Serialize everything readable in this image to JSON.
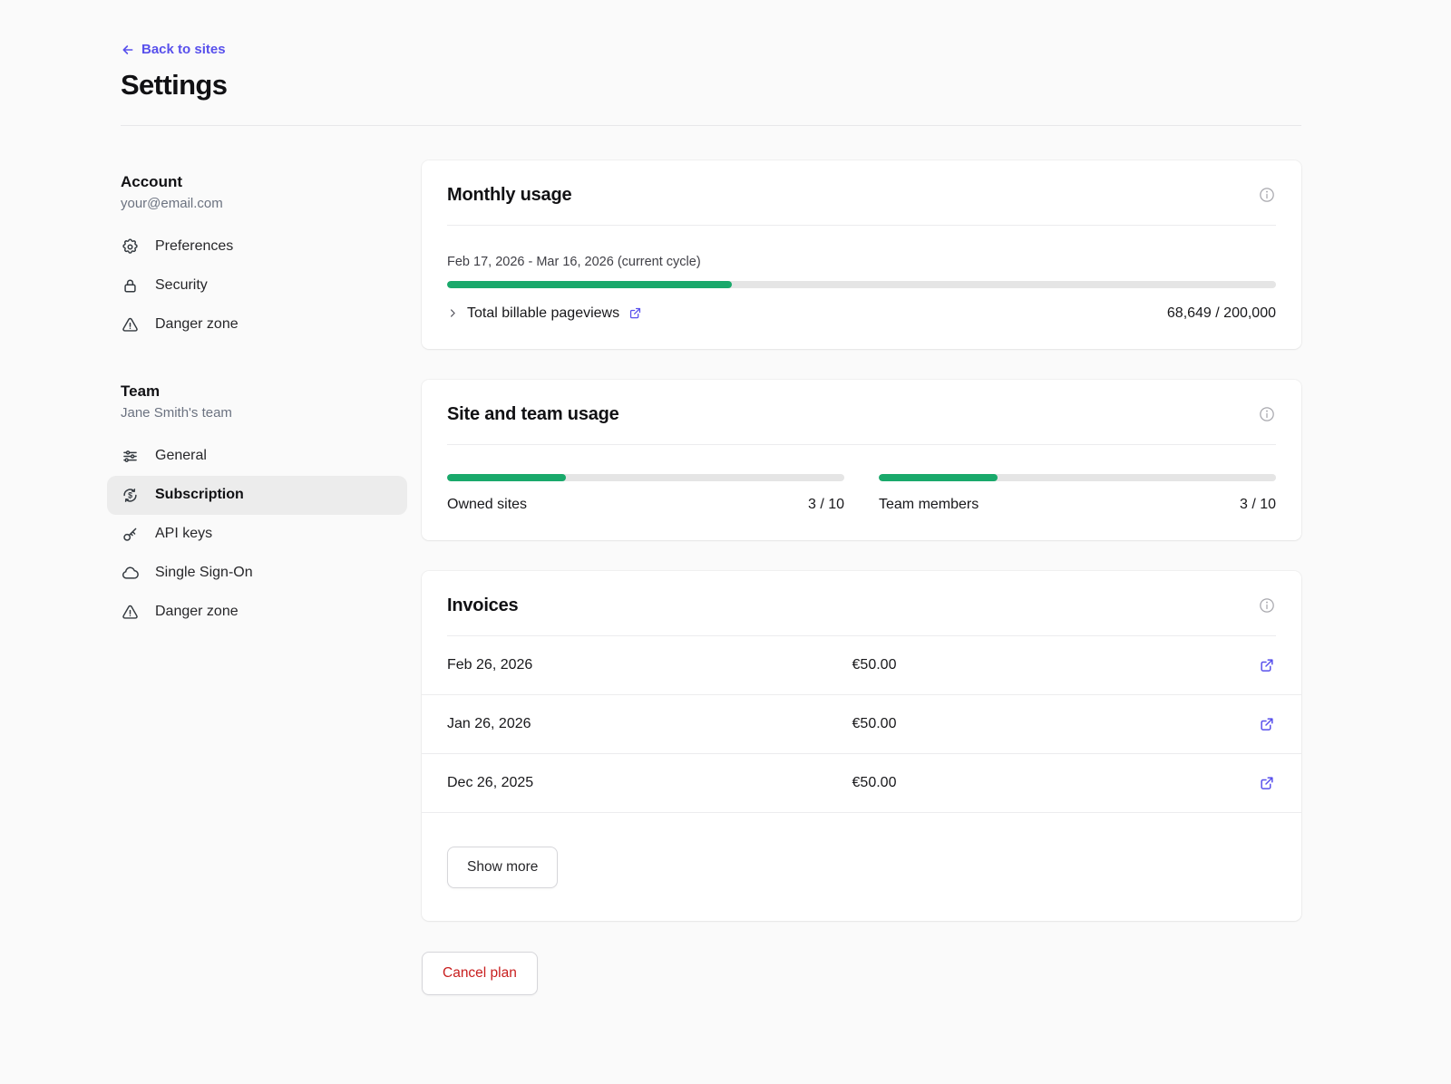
{
  "page": {
    "back_label": "Back to sites",
    "title": "Settings"
  },
  "sidebar": {
    "account": {
      "heading": "Account",
      "subheading": "your@email.com",
      "items": [
        {
          "label": "Preferences",
          "icon": "gear-icon"
        },
        {
          "label": "Security",
          "icon": "lock-icon"
        },
        {
          "label": "Danger zone",
          "icon": "warning-icon"
        }
      ]
    },
    "team": {
      "heading": "Team",
      "subheading": "Jane Smith's team",
      "items": [
        {
          "label": "General",
          "icon": "sliders-icon",
          "active": false
        },
        {
          "label": "Subscription",
          "icon": "dollar-refresh-icon",
          "active": true
        },
        {
          "label": "API keys",
          "icon": "key-icon",
          "active": false
        },
        {
          "label": "Single Sign-On",
          "icon": "cloud-icon",
          "active": false
        },
        {
          "label": "Danger zone",
          "icon": "warning-icon",
          "active": false
        }
      ]
    }
  },
  "monthly_usage": {
    "title": "Monthly usage",
    "cycle_label": "Feb 17, 2026 - Mar 16, 2026 (current cycle)",
    "progress_pct": 34.3,
    "pageviews_label": "Total billable pageviews",
    "pageviews_value": "68,649 / 200,000"
  },
  "site_team_usage": {
    "title": "Site and team usage",
    "meters": [
      {
        "label": "Owned sites",
        "value": "3 / 10",
        "pct": 30
      },
      {
        "label": "Team members",
        "value": "3 / 10",
        "pct": 30
      }
    ]
  },
  "invoices": {
    "title": "Invoices",
    "rows": [
      {
        "date": "Feb 26, 2026",
        "amount": "€50.00"
      },
      {
        "date": "Jan 26, 2026",
        "amount": "€50.00"
      },
      {
        "date": "Dec 26, 2025",
        "amount": "€50.00"
      }
    ],
    "show_more_label": "Show more"
  },
  "cancel_plan_label": "Cancel plan",
  "colors": {
    "accent": "#5850ec",
    "green": "#19a96b",
    "track": "#e5e5e5",
    "danger": "#c81e1e"
  }
}
